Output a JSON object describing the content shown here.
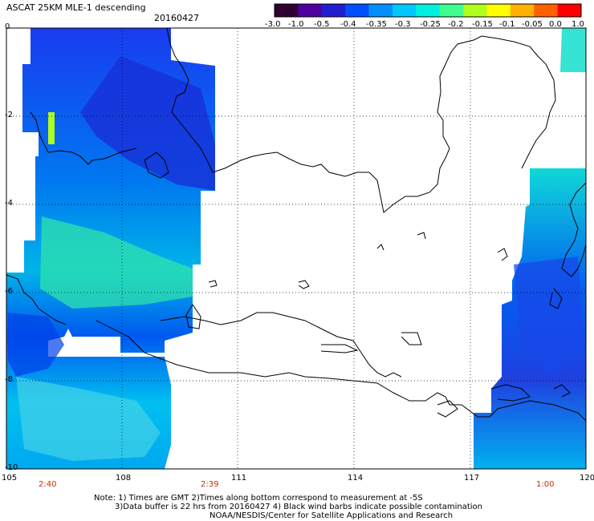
{
  "header": {
    "title": "ASCAT 25KM MLE-1 descending",
    "date": "20160427"
  },
  "colorbar": {
    "labels": [
      "-3.0",
      "-1.0",
      "-0.5",
      "-0.4",
      "-0.35",
      "-0.3",
      "-0.25",
      "-0.2",
      "-0.15",
      "-0.1",
      "-0.05",
      "0.0",
      "1.0"
    ],
    "colors": [
      "#300030",
      "#5000a0",
      "#2020d0",
      "#0050ff",
      "#0090ff",
      "#00c8ff",
      "#00f0e0",
      "#40ff90",
      "#b0ff20",
      "#ffff00",
      "#ffb000",
      "#ff6000",
      "#ff0000"
    ]
  },
  "axes": {
    "y_ticks": [
      "0",
      "-2",
      "-4",
      "-6",
      "-8",
      "-10"
    ],
    "x_ticks": [
      "105",
      "108",
      "111",
      "114",
      "117",
      "120"
    ],
    "lat_range": [
      -10,
      0
    ],
    "lon_range": [
      105,
      120
    ]
  },
  "pass_times": [
    {
      "label": "2:40"
    },
    {
      "label": "2:39"
    },
    {
      "label": "1:00"
    }
  ],
  "notes": {
    "line1": "Note: 1) Times are GMT 2)Times along bottom correspond to measurement at -5S",
    "line2": "3)Data buffer is 22 hrs from 20160427 4) Black wind barbs indicate possible contamination",
    "line3": "NOAA/NESDIS/Center for Satellite Applications and Research"
  }
}
